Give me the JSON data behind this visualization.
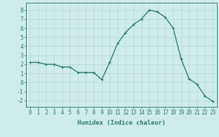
{
  "x": [
    0,
    1,
    2,
    3,
    4,
    5,
    6,
    7,
    8,
    9,
    10,
    11,
    12,
    13,
    14,
    15,
    16,
    17,
    18,
    19,
    20,
    21,
    22,
    23
  ],
  "y": [
    2.2,
    2.2,
    2.0,
    2.0,
    1.7,
    1.7,
    1.1,
    1.1,
    1.1,
    0.3,
    2.2,
    4.3,
    5.5,
    6.4,
    7.0,
    8.0,
    7.8,
    7.2,
    6.0,
    2.6,
    0.4,
    -0.2,
    -1.5,
    -2.1
  ],
  "line_color": "#2e7d6e",
  "marker": "+",
  "marker_size": 3,
  "bg_color": "#ceecea",
  "grid_color": "#b8d8d4",
  "axis_color": "#2e7d6e",
  "xlabel": "Humidex (Indice chaleur)",
  "xlim": [
    -0.5,
    23.5
  ],
  "ylim": [
    -2.7,
    8.8
  ],
  "yticks": [
    -2,
    -1,
    0,
    1,
    2,
    3,
    4,
    5,
    6,
    7,
    8
  ],
  "xticks": [
    0,
    1,
    2,
    3,
    4,
    5,
    6,
    7,
    8,
    9,
    10,
    11,
    12,
    13,
    14,
    15,
    16,
    17,
    18,
    19,
    20,
    21,
    22,
    23
  ],
  "xlabel_fontsize": 6.5,
  "tick_fontsize": 5.5,
  "line_width": 1.0
}
